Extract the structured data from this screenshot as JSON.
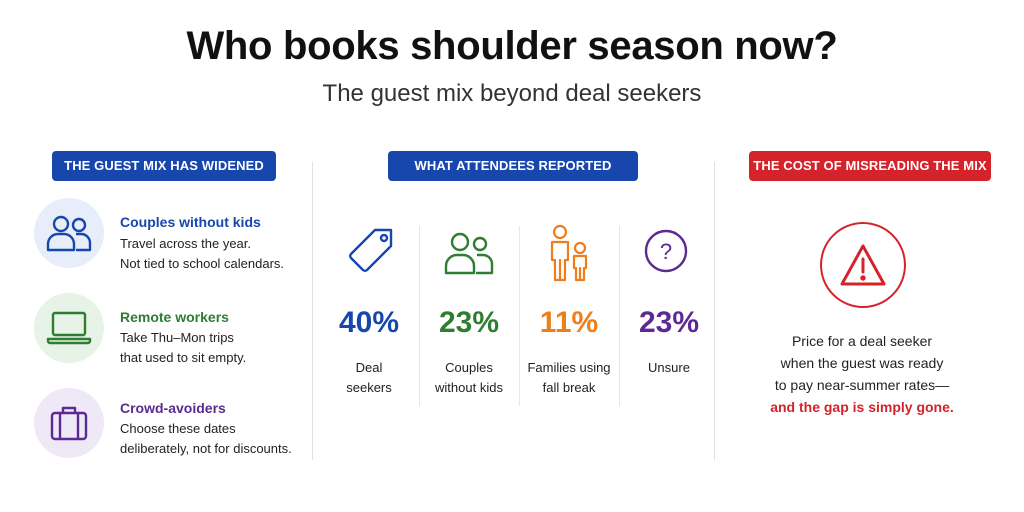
{
  "header": {
    "title": "Who books shoulder season now?",
    "subtitle": "The guest mix beyond deal seekers"
  },
  "colors": {
    "blue": "#1747ad",
    "green": "#2e7d32",
    "orange": "#ef7d1a",
    "purple": "#5b2a92",
    "red": "#d4232a"
  },
  "left": {
    "heading": "THE GUEST MIX HAS WIDENED",
    "items": [
      {
        "icon": "couple-icon",
        "title": "Couples without kids",
        "lines": [
          "Travel across the year.",
          "Not tied to school calendars."
        ]
      },
      {
        "icon": "laptop-icon",
        "title": "Remote workers",
        "lines": [
          "Take Thu–Mon trips",
          "that used to sit empty."
        ]
      },
      {
        "icon": "suitcase-icon",
        "title": "Crowd-avoiders",
        "lines": [
          "Choose these dates",
          "deliberately, not for discounts."
        ]
      }
    ]
  },
  "middle": {
    "heading": "WHAT ATTENDEES REPORTED",
    "stats": [
      {
        "icon": "price-tag-icon",
        "value": "40%",
        "lines": [
          "Deal",
          "seekers"
        ]
      },
      {
        "icon": "couple-icon",
        "value": "23%",
        "lines": [
          "Couples",
          "without kids"
        ]
      },
      {
        "icon": "family-icon",
        "value": "11%",
        "lines": [
          "Families using",
          "fall break"
        ]
      },
      {
        "icon": "question-icon",
        "value": "23%",
        "lines": [
          "Unsure"
        ]
      }
    ]
  },
  "right": {
    "heading": "THE COST OF MISREADING THE MIX",
    "icon": "warning-icon",
    "lines": [
      "Price for a deal seeker",
      "when the guest was ready",
      "to pay near-summer rates—"
    ],
    "highlight": "and the gap is simply gone."
  }
}
